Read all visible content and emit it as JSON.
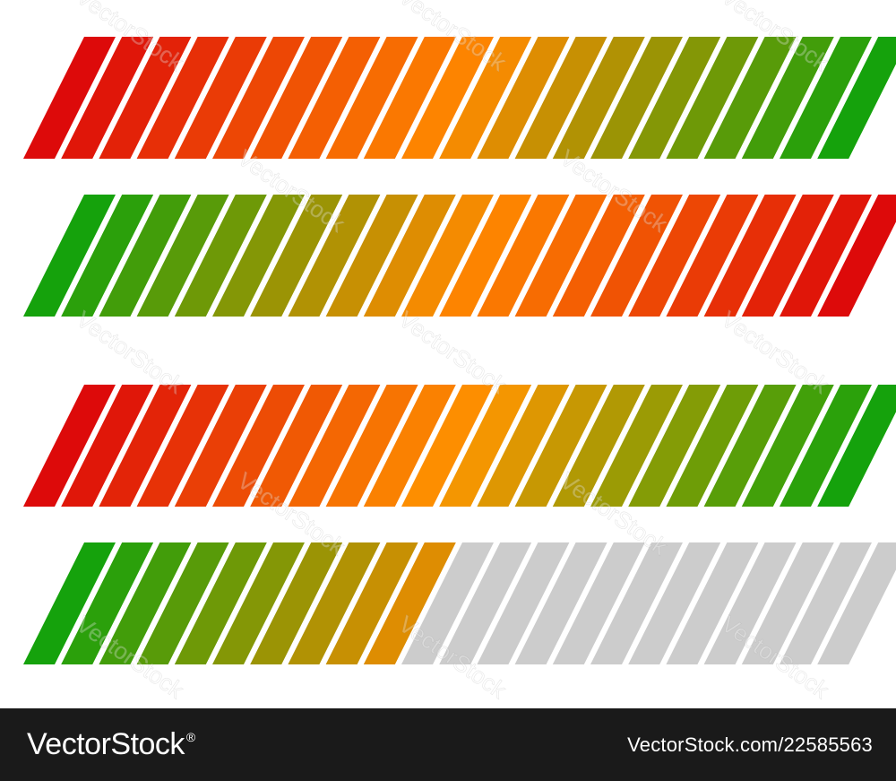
{
  "bars": [
    {
      "name": "red-to-green",
      "colors": [
        "#dd0a0a",
        "#ff8a00",
        "#15a20c"
      ],
      "fill_fraction": 1.0,
      "empty_color": "#cccccc"
    },
    {
      "name": "green-to-red",
      "colors": [
        "#15a20c",
        "#ff8a00",
        "#dd0a0a"
      ],
      "fill_fraction": 1.0,
      "empty_color": "#cccccc"
    },
    {
      "name": "red-to-green-second",
      "colors": [
        "#dd0a0a",
        "#ff9500",
        "#15a20c"
      ],
      "fill_fraction": 1.0,
      "empty_color": "#cccccc"
    },
    {
      "name": "partial-green-to-amber",
      "colors": [
        "#15a20c",
        "#ff8a00",
        "#dd0a0a"
      ],
      "fill_fraction": 0.44,
      "empty_color": "#cccccc"
    }
  ],
  "segments_per_bar": 22,
  "watermark": "VectorStock",
  "footer": {
    "brand": "VectorStock",
    "registered": "®",
    "image_id": "VectorStock.com/22585563"
  }
}
